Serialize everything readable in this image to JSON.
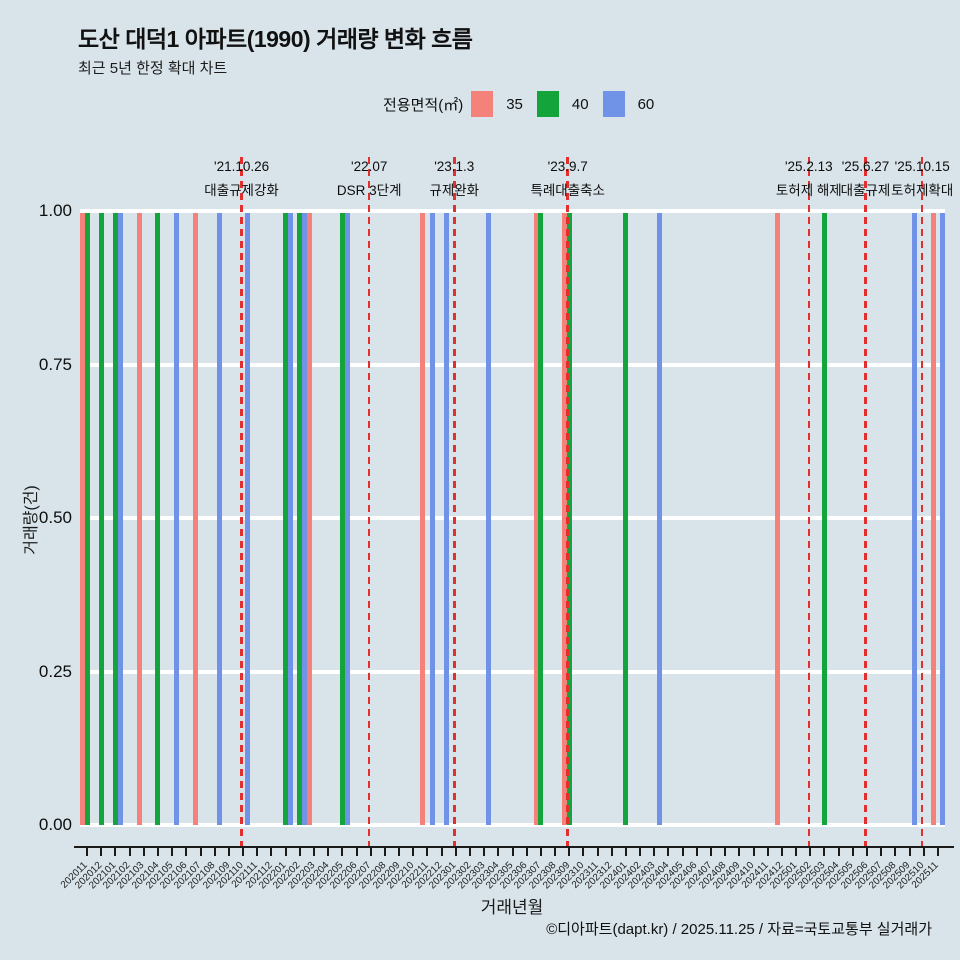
{
  "header": {
    "title": "도산 대덕1 아파트(1990) 거래량 변화 흐름",
    "subtitle": "최근 5년 한정 확대 차트"
  },
  "legend": {
    "label": "전용면적(㎡)",
    "items": [
      {
        "label": "35",
        "color": "#F5827A"
      },
      {
        "label": "40",
        "color": "#13A53B"
      },
      {
        "label": "60",
        "color": "#7093E8"
      }
    ]
  },
  "chart_data": {
    "type": "bar",
    "title": "도산 대덕1 아파트(1990) 거래량 변화 흐름",
    "subtitle": "최근 5년 한정 확대 차트",
    "xlabel": "거래년월",
    "ylabel": "거래량(건)",
    "ylim": [
      0,
      1.0
    ],
    "yticks": [
      "0.00",
      "0.25",
      "0.50",
      "0.75",
      "1.00"
    ],
    "grid": "horizontal-white",
    "legend_position": "top",
    "categories": [
      "202011",
      "202012",
      "202101",
      "202102",
      "202103",
      "202104",
      "202105",
      "202106",
      "202107",
      "202108",
      "202109",
      "202110",
      "202111",
      "202112",
      "202201",
      "202202",
      "202203",
      "202204",
      "202205",
      "202206",
      "202207",
      "202208",
      "202209",
      "202210",
      "202211",
      "202212",
      "202301",
      "202302",
      "202303",
      "202304",
      "202305",
      "202306",
      "202307",
      "202308",
      "202309",
      "202310",
      "202311",
      "202312",
      "202401",
      "202402",
      "202403",
      "202404",
      "202405",
      "202406",
      "202407",
      "202408",
      "202409",
      "202410",
      "202411",
      "202412",
      "202501",
      "202502",
      "202503",
      "202504",
      "202505",
      "202506",
      "202507",
      "202508",
      "202509",
      "202510",
      "202511"
    ],
    "series": [
      {
        "name": "35",
        "color": "#F5827A",
        "bar_value": 1,
        "months": [
          "202011",
          "202103",
          "202107",
          "202203",
          "202211",
          "202307",
          "202309",
          "202412",
          "202511"
        ]
      },
      {
        "name": "40",
        "color": "#13A53B",
        "bar_value": 1,
        "months": [
          "202011",
          "202012",
          "202101",
          "202104",
          "202201",
          "202202",
          "202205",
          "202307",
          "202309",
          "202401",
          "202503"
        ]
      },
      {
        "name": "60",
        "color": "#7093E8",
        "bar_value": 1,
        "months": [
          "202101",
          "202105",
          "202108",
          "202110",
          "202201",
          "202202",
          "202205",
          "202211",
          "202212",
          "202303",
          "202403",
          "202509",
          "202511"
        ]
      }
    ],
    "events": [
      {
        "month": "202110",
        "date": "'21.10.26",
        "label": "대출규제강화"
      },
      {
        "month": "202207",
        "date": "'22.07",
        "label": "DSR 3단계"
      },
      {
        "month": "202301",
        "date": "'23.1.3",
        "label": "규제완화"
      },
      {
        "month": "202309",
        "date": "'23.9.7",
        "label": "특례대출축소"
      },
      {
        "month": "202502",
        "date": "'25.2.13",
        "label": "토허제 해제"
      },
      {
        "month": "202506",
        "date": "'25.6.27",
        "label": "대출규제"
      },
      {
        "month": "202510",
        "date": "'25.10.15",
        "label": "토허제확대"
      }
    ],
    "event_line_color": "#E22E2C"
  },
  "footer": {
    "credit": "©디아파트(dapt.kr) / 2025.11.25 / 자료=국토교통부 실거래가"
  }
}
